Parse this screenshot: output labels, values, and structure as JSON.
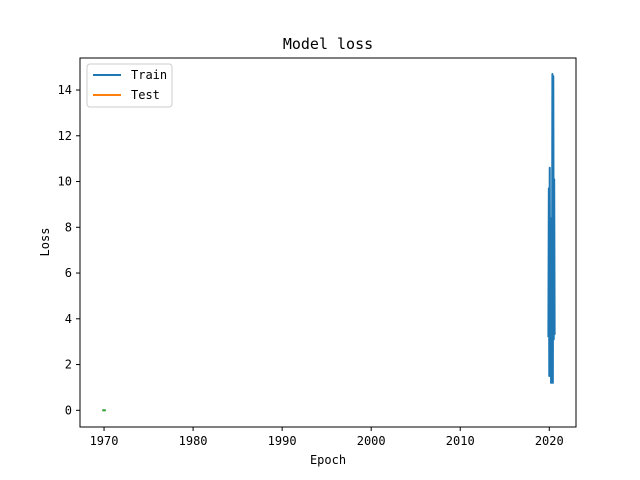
{
  "chart_data": {
    "type": "line",
    "title": "Model loss",
    "xlabel": "Epoch",
    "ylabel": "Loss",
    "xlim": [
      1967.3,
      2023.0
    ],
    "ylim": [
      -0.73,
      15.4
    ],
    "xticks": [
      1970,
      1980,
      1990,
      2000,
      2010,
      2020
    ],
    "yticks": [
      0,
      2,
      4,
      6,
      8,
      10,
      12,
      14
    ],
    "grid": false,
    "legend": {
      "placement": "upper-left",
      "entries": [
        "Train",
        "Test"
      ]
    },
    "series": [
      {
        "name": "Train",
        "color": "#1f77b4",
        "x": [
          2019.9,
          2019.95,
          2020.0,
          2020.05,
          2020.1,
          2020.15,
          2020.2,
          2020.25,
          2020.3,
          2020.35,
          2020.4,
          2020.45,
          2020.5,
          2020.55,
          2020.6
        ],
        "y": [
          3.2,
          9.7,
          1.5,
          10.6,
          1.8,
          8.2,
          1.2,
          8.4,
          2.5,
          14.7,
          1.2,
          14.6,
          3.1,
          10.1,
          3.3
        ]
      },
      {
        "name": "Test",
        "color": "#ff7f0e",
        "x": [],
        "y": []
      },
      {
        "color": "#2ca02c",
        "x": [
          1969.8,
          1970.2
        ],
        "y": [
          0.0,
          0.0
        ]
      }
    ]
  }
}
